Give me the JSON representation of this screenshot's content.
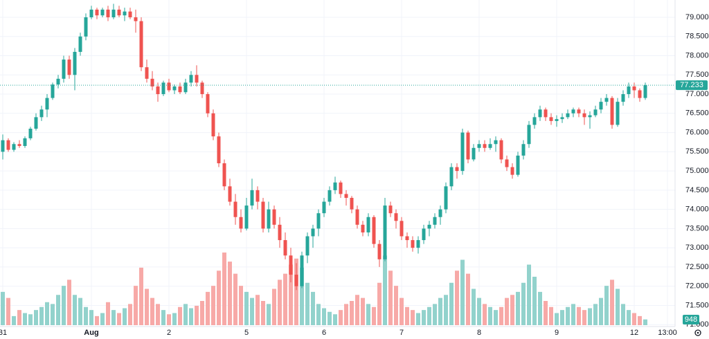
{
  "chart_data": {
    "type": "candlestick",
    "categories": [
      "31",
      null,
      null,
      null,
      null,
      null,
      null,
      null,
      null,
      null,
      null,
      null,
      null,
      null,
      null,
      null,
      "Aug",
      null,
      null,
      null,
      null,
      null,
      null,
      null,
      null,
      null,
      null,
      null,
      null,
      null,
      "2",
      null,
      null,
      null,
      null,
      null,
      null,
      null,
      null,
      null,
      null,
      null,
      null,
      null,
      "5",
      null,
      null,
      null,
      null,
      null,
      null,
      null,
      null,
      null,
      null,
      null,
      null,
      null,
      "6",
      null,
      null,
      null,
      null,
      null,
      null,
      null,
      null,
      null,
      null,
      null,
      null,
      null,
      "7",
      null,
      null,
      null,
      null,
      null,
      null,
      null,
      null,
      null,
      null,
      null,
      null,
      null,
      "8",
      null,
      null,
      null,
      null,
      null,
      null,
      null,
      null,
      null,
      null,
      null,
      null,
      null,
      "9",
      null,
      null,
      null,
      null,
      null,
      null,
      null,
      null,
      null,
      null,
      null,
      null,
      null,
      "12",
      null,
      null,
      null,
      null,
      null,
      "13:00"
    ],
    "candles": [
      [
        75.5,
        75.95,
        75.3,
        75.8
      ],
      [
        75.8,
        75.85,
        75.5,
        75.55
      ],
      [
        75.55,
        75.75,
        75.5,
        75.7
      ],
      [
        75.7,
        75.8,
        75.6,
        75.65
      ],
      [
        75.65,
        75.9,
        75.6,
        75.85
      ],
      [
        75.85,
        76.15,
        75.8,
        76.1
      ],
      [
        76.1,
        76.5,
        76.05,
        76.4
      ],
      [
        76.4,
        76.7,
        76.3,
        76.6
      ],
      [
        76.6,
        77.0,
        76.4,
        76.9
      ],
      [
        76.9,
        77.3,
        76.85,
        77.25
      ],
      [
        77.25,
        77.5,
        77.15,
        77.4
      ],
      [
        77.4,
        78.0,
        77.3,
        77.9
      ],
      [
        77.9,
        78.0,
        77.4,
        77.5
      ],
      [
        77.5,
        78.2,
        77.1,
        78.1
      ],
      [
        78.1,
        78.6,
        78.0,
        78.5
      ],
      [
        78.5,
        79.1,
        78.4,
        79.0
      ],
      [
        79.0,
        79.3,
        78.95,
        79.2
      ],
      [
        79.2,
        79.25,
        78.95,
        79.05
      ],
      [
        79.05,
        79.25,
        79.0,
        79.2
      ],
      [
        79.2,
        79.3,
        78.9,
        79.0
      ],
      [
        79.0,
        79.35,
        78.95,
        79.2
      ],
      [
        79.2,
        79.3,
        79.0,
        79.05
      ],
      [
        79.05,
        79.25,
        78.9,
        79.15
      ],
      [
        79.15,
        79.25,
        78.95,
        79.0
      ],
      [
        79.0,
        79.2,
        78.6,
        78.9
      ],
      [
        78.9,
        79.0,
        77.6,
        77.7
      ],
      [
        77.7,
        77.9,
        77.3,
        77.4
      ],
      [
        77.4,
        77.6,
        77.1,
        77.2
      ],
      [
        77.2,
        77.3,
        76.8,
        77.0
      ],
      [
        77.0,
        77.35,
        76.95,
        77.3
      ],
      [
        77.3,
        77.4,
        77.05,
        77.1
      ],
      [
        77.1,
        77.25,
        77.0,
        77.2
      ],
      [
        77.2,
        77.3,
        77.0,
        77.05
      ],
      [
        77.05,
        77.4,
        77.0,
        77.3
      ],
      [
        77.3,
        77.6,
        77.2,
        77.5
      ],
      [
        77.5,
        77.75,
        77.2,
        77.3
      ],
      [
        77.3,
        77.35,
        76.9,
        77.0
      ],
      [
        77.0,
        77.05,
        76.4,
        76.5
      ],
      [
        76.5,
        76.6,
        75.8,
        75.9
      ],
      [
        75.9,
        76.0,
        75.1,
        75.2
      ],
      [
        75.2,
        75.3,
        74.5,
        74.6
      ],
      [
        74.6,
        74.8,
        74.1,
        74.2
      ],
      [
        74.2,
        74.4,
        73.6,
        73.8
      ],
      [
        73.8,
        74.0,
        73.4,
        73.5
      ],
      [
        73.5,
        74.3,
        73.45,
        74.1
      ],
      [
        74.1,
        74.8,
        74.0,
        74.5
      ],
      [
        74.5,
        74.6,
        74.0,
        74.2
      ],
      [
        74.2,
        74.3,
        73.4,
        73.5
      ],
      [
        73.5,
        74.2,
        73.4,
        74.0
      ],
      [
        74.0,
        74.1,
        73.5,
        73.6
      ],
      [
        73.6,
        73.8,
        73.0,
        73.2
      ],
      [
        73.2,
        73.4,
        72.7,
        72.8
      ],
      [
        72.8,
        73.0,
        72.1,
        72.3
      ],
      [
        72.3,
        72.6,
        71.9,
        72.0
      ],
      [
        72.0,
        72.9,
        71.95,
        72.8
      ],
      [
        72.8,
        73.4,
        72.6,
        73.3
      ],
      [
        73.3,
        73.6,
        73.0,
        73.5
      ],
      [
        73.5,
        74.0,
        73.3,
        73.9
      ],
      [
        73.9,
        74.3,
        73.8,
        74.2
      ],
      [
        74.2,
        74.6,
        74.1,
        74.5
      ],
      [
        74.5,
        74.85,
        74.4,
        74.7
      ],
      [
        74.7,
        74.75,
        74.3,
        74.4
      ],
      [
        74.4,
        74.5,
        74.1,
        74.3
      ],
      [
        74.3,
        74.35,
        73.9,
        74.0
      ],
      [
        74.0,
        74.1,
        73.5,
        73.6
      ],
      [
        73.6,
        73.7,
        73.3,
        73.4
      ],
      [
        73.4,
        73.9,
        73.3,
        73.8
      ],
      [
        73.8,
        73.85,
        73.0,
        73.1
      ],
      [
        73.1,
        73.2,
        72.5,
        72.7
      ],
      [
        72.7,
        74.3,
        72.65,
        74.1
      ],
      [
        74.1,
        74.2,
        73.8,
        73.9
      ],
      [
        73.9,
        74.0,
        73.5,
        73.7
      ],
      [
        73.7,
        73.8,
        73.2,
        73.3
      ],
      [
        73.3,
        73.4,
        73.0,
        73.2
      ],
      [
        73.2,
        73.3,
        72.9,
        73.0
      ],
      [
        73.0,
        73.3,
        72.85,
        73.2
      ],
      [
        73.2,
        73.6,
        73.1,
        73.5
      ],
      [
        73.5,
        73.7,
        73.3,
        73.6
      ],
      [
        73.6,
        73.9,
        73.5,
        73.8
      ],
      [
        73.8,
        74.1,
        73.6,
        74.0
      ],
      [
        74.0,
        74.7,
        73.9,
        74.6
      ],
      [
        74.6,
        75.2,
        74.5,
        75.1
      ],
      [
        75.1,
        75.2,
        74.8,
        75.0
      ],
      [
        75.0,
        76.1,
        74.9,
        76.0
      ],
      [
        76.0,
        76.05,
        75.2,
        75.3
      ],
      [
        75.3,
        75.7,
        75.25,
        75.6
      ],
      [
        75.6,
        75.8,
        75.5,
        75.7
      ],
      [
        75.7,
        75.8,
        75.5,
        75.6
      ],
      [
        75.6,
        75.85,
        75.55,
        75.7
      ],
      [
        75.7,
        75.9,
        75.5,
        75.8
      ],
      [
        75.8,
        75.85,
        75.2,
        75.3
      ],
      [
        75.3,
        75.4,
        75.0,
        75.1
      ],
      [
        75.1,
        75.2,
        74.8,
        74.9
      ],
      [
        74.9,
        75.5,
        74.85,
        75.4
      ],
      [
        75.4,
        75.8,
        75.3,
        75.7
      ],
      [
        75.7,
        76.3,
        75.6,
        76.2
      ],
      [
        76.2,
        76.5,
        76.1,
        76.4
      ],
      [
        76.4,
        76.7,
        76.3,
        76.6
      ],
      [
        76.6,
        76.65,
        76.3,
        76.4
      ],
      [
        76.4,
        76.5,
        76.2,
        76.3
      ],
      [
        76.3,
        76.45,
        76.15,
        76.35
      ],
      [
        76.35,
        76.5,
        76.25,
        76.4
      ],
      [
        76.4,
        76.6,
        76.35,
        76.5
      ],
      [
        76.5,
        76.65,
        76.4,
        76.6
      ],
      [
        76.6,
        76.65,
        76.4,
        76.5
      ],
      [
        76.5,
        76.6,
        76.2,
        76.4
      ],
      [
        76.4,
        76.55,
        76.1,
        76.45
      ],
      [
        76.45,
        76.7,
        76.4,
        76.6
      ],
      [
        76.6,
        76.9,
        76.5,
        76.8
      ],
      [
        76.8,
        77.0,
        76.7,
        76.9
      ],
      [
        76.9,
        76.95,
        76.1,
        76.2
      ],
      [
        76.2,
        76.9,
        76.15,
        76.8
      ],
      [
        76.8,
        77.1,
        76.7,
        77.0
      ],
      [
        77.0,
        77.3,
        76.9,
        77.2
      ],
      [
        77.2,
        77.3,
        76.9,
        77.1
      ],
      [
        77.1,
        77.15,
        76.8,
        76.9
      ],
      [
        76.9,
        77.3,
        76.85,
        77.233
      ],
      null,
      null,
      null,
      null
    ],
    "volume": [
      5500,
      4500,
      1500,
      2500,
      2000,
      1800,
      2500,
      3000,
      3800,
      3500,
      5000,
      6500,
      7500,
      5000,
      4500,
      3000,
      2500,
      1500,
      2000,
      3800,
      2500,
      2000,
      2800,
      3500,
      6500,
      9500,
      6000,
      4500,
      3500,
      2500,
      1800,
      2000,
      3000,
      3500,
      2800,
      3200,
      4000,
      5500,
      6500,
      9000,
      12000,
      10500,
      8500,
      6500,
      5500,
      4500,
      5000,
      4000,
      3500,
      6000,
      7500,
      8500,
      10000,
      11000,
      9500,
      7000,
      5500,
      3500,
      2800,
      2200,
      1800,
      2500,
      3500,
      4000,
      5000,
      4500,
      3500,
      3000,
      7000,
      11500,
      9000,
      6500,
      4500,
      3000,
      2500,
      2000,
      2500,
      3000,
      3500,
      4500,
      5000,
      7000,
      9000,
      10800,
      8500,
      6000,
      4500,
      3500,
      3000,
      2500,
      3000,
      4500,
      5000,
      5500,
      7000,
      10000,
      8000,
      5500,
      4000,
      3000,
      2000,
      2500,
      3000,
      3500,
      3000,
      2500,
      2800,
      3500,
      4500,
      6500,
      7500,
      6000,
      3500,
      2500,
      2000,
      1500,
      948,
      null,
      null,
      null,
      null
    ],
    "ylim": [
      70.95,
      79.45
    ],
    "yticks": [
      {
        "value": 71,
        "label": "71.000"
      },
      {
        "value": 71.5,
        "label": "71.500"
      },
      {
        "value": 72,
        "label": "72.000"
      },
      {
        "value": 72.5,
        "label": "72.500"
      },
      {
        "value": 73,
        "label": "73.000"
      },
      {
        "value": 73.5,
        "label": "73.500"
      },
      {
        "value": 74,
        "label": "74.000"
      },
      {
        "value": 74.5,
        "label": "74.500"
      },
      {
        "value": 75,
        "label": "75.000"
      },
      {
        "value": 75.5,
        "label": "75.500"
      },
      {
        "value": 76,
        "label": "76.000"
      },
      {
        "value": 76.5,
        "label": "76.500"
      },
      {
        "value": 77,
        "label": "77.000"
      },
      {
        "value": 77.5,
        "label": "77.500"
      },
      {
        "value": 78,
        "label": "78.000"
      },
      {
        "value": 78.5,
        "label": "78.500"
      },
      {
        "value": 79,
        "label": "79.000"
      }
    ],
    "volume_ylim": [
      0,
      12000
    ],
    "grid": true,
    "up_color": "#26a69a",
    "down_color": "#ef5350",
    "volume_up_color": "#92d2cc",
    "volume_down_color": "#f7a9a7"
  }
}
